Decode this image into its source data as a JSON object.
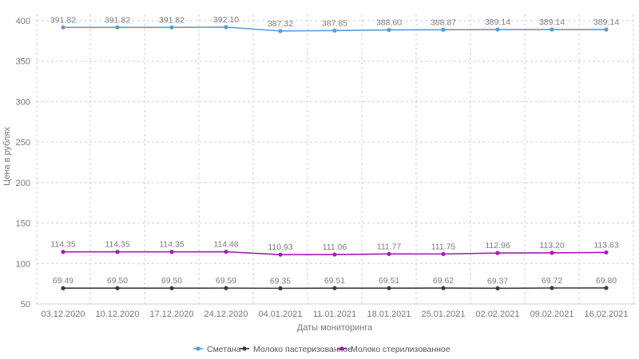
{
  "chart_data": {
    "type": "line",
    "title": "",
    "xlabel": "Даты мониторинга",
    "ylabel": "Цена в рублях",
    "ylim": [
      50,
      400
    ],
    "yticks": [
      50,
      100,
      150,
      200,
      250,
      300,
      350,
      400
    ],
    "grid": true,
    "legend": "bottom",
    "categories": [
      "03.12.2020",
      "10.12.2020",
      "17.12.2020",
      "24.12.2020",
      "04.01.2021",
      "11.01.2021",
      "18.01.2021",
      "25.01.2021",
      "02.02.2021",
      "09.02.2021",
      "16.02.2021"
    ],
    "series": [
      {
        "name": "Сметана",
        "color": "#5b9bd5",
        "values": [
          391.82,
          391.82,
          391.82,
          392.1,
          387.32,
          387.85,
          388.6,
          388.87,
          389.14,
          389.14,
          389.14
        ],
        "labels": [
          "391.82",
          "391.82",
          "391.82",
          "392.10",
          "387.32",
          "387.85",
          "388.60",
          "388.87",
          "389.14",
          "389.14",
          "389.14"
        ]
      },
      {
        "name": "Молоко пастеризованное",
        "color": "#3a3a3a",
        "values": [
          69.49,
          69.5,
          69.5,
          69.59,
          69.35,
          69.51,
          69.51,
          69.62,
          69.37,
          69.72,
          69.8
        ],
        "labels": [
          "69.49",
          "69.50",
          "69.50",
          "69.59",
          "69.35",
          "69.51",
          "69.51",
          "69.62",
          "69.37",
          "69.72",
          "69.80"
        ]
      },
      {
        "name": "Молоко стерилизованное",
        "color": "#a020b0",
        "values": [
          114.35,
          114.35,
          114.35,
          114.48,
          110.93,
          111.06,
          111.77,
          111.75,
          112.96,
          113.2,
          113.63
        ],
        "labels": [
          "114.35",
          "114.35",
          "114.35",
          "114.48",
          "110.93",
          "111.06",
          "111.77",
          "111.75",
          "112.96",
          "113.20",
          "113.63"
        ]
      }
    ]
  }
}
